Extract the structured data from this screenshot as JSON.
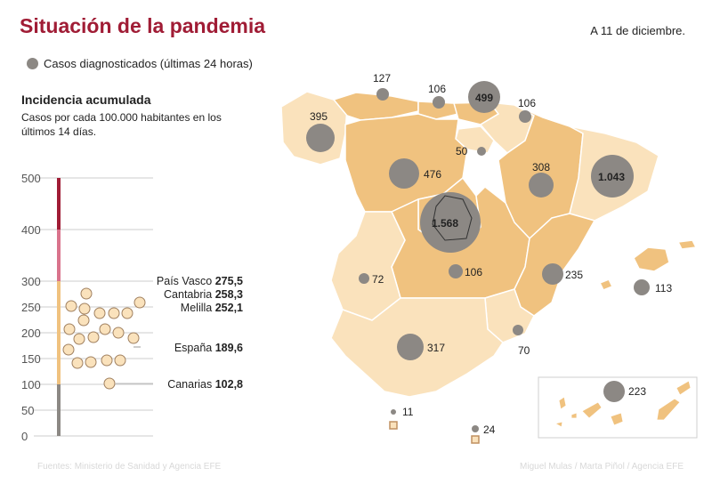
{
  "title": "Situación de la pandemia",
  "date": "A 11 de diciembre.",
  "legend_label": "Casos diagnosticados (últimas 24 horas)",
  "incidence": {
    "title": "Incidencia acumulada",
    "subtitle": "Casos por cada 100.000 habitantes en los últimos 14 días.",
    "ticks": [
      "500",
      "400",
      "300",
      "250",
      "200",
      "150",
      "100",
      "50",
      "0"
    ],
    "highlights": [
      {
        "name": "País Vasco",
        "value": "275,5"
      },
      {
        "name": "Cantabria",
        "value": "258,3"
      },
      {
        "name": "Melilla",
        "value": "252,1"
      },
      {
        "name": "España",
        "value": "189,6"
      },
      {
        "name": "Canarias",
        "value": "102,8"
      }
    ]
  },
  "cases": {
    "galicia": "395",
    "asturias": "127",
    "cantabria": "106",
    "pais_vasco": "499",
    "navarra": "106",
    "la_rioja": "50",
    "castilla_leon": "476",
    "aragon": "308",
    "cataluna": "1.043",
    "madrid": "1.568",
    "castilla_la_mancha": "106",
    "extremadura": "72",
    "valencia": "235",
    "baleares": "113",
    "murcia": "70",
    "andalucia": "317",
    "canarias": "223",
    "ceuta": "11",
    "melilla": "24"
  },
  "colors": {
    "title": "#a01c35",
    "bubble": "#8c8884",
    "region_dark": "#f0c27f",
    "region_light": "#fae2bc"
  },
  "footer": {
    "sources": "Fuentes: Ministerio de Sanidad y Agencia EFE",
    "credits": "Miguel Mulas / Marta Piñol / Agencia EFE"
  }
}
